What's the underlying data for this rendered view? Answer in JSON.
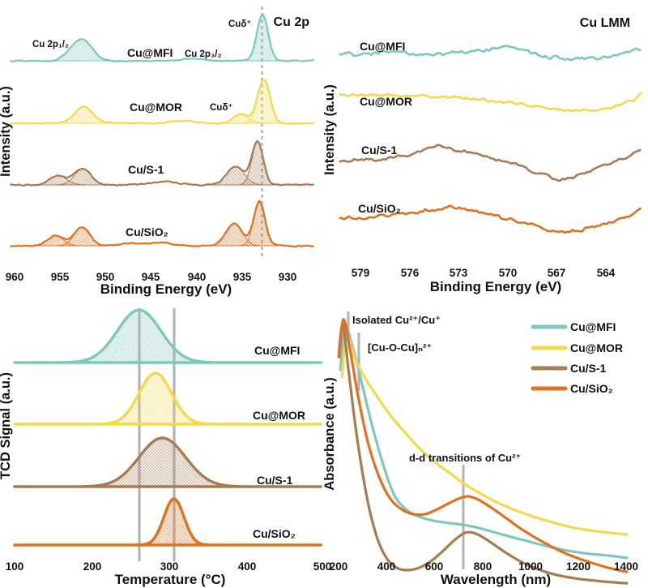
{
  "colors": {
    "series": [
      "#7cc8bc",
      "#f6d84b",
      "#a87b52",
      "#e0711f"
    ],
    "reference": "#b3b3b3"
  },
  "panels": {
    "cu2p": {
      "title": "Cu 2p",
      "ylabel": "Intensity (a.u.)",
      "xlabel": "Binding Energy (eV)",
      "label_p12": "Cu 2p₁/₂",
      "label_p32": "Cu 2p₃/₂",
      "label_species": "Cuδ⁺",
      "curves": [
        "Cu@MFI",
        "Cu@MOR",
        "Cu/S-1",
        "Cu/SiO₂"
      ]
    },
    "culmm": {
      "title": "Cu LMM",
      "ylabel": "Intensity (a.u.)",
      "xlabel": "Binding Energy (eV)",
      "curves": [
        "Cu@MFI",
        "Cu@MOR",
        "Cu/S-1",
        "Cu/SiO₂"
      ]
    },
    "tpd": {
      "ylabel": "TCD Signal (a.u.)",
      "xlabel": "Temperature (°C)",
      "curves": [
        "Cu@MFI",
        "Cu@MOR",
        "Cu/S-1",
        "Cu/SiO₂"
      ]
    },
    "uvvis": {
      "ylabel": "Absorbance (a.u.)",
      "xlabel": "Wavelength (nm)",
      "legend": [
        "Cu@MFI",
        "Cu@MOR",
        "Cu/S-1",
        "Cu/SiO₂"
      ],
      "ann_isolated": "Isolated Cu²⁺/Cu⁺",
      "ann_cuocu": "[Cu-O-Cu]ₙ²⁺",
      "ann_dd": "d-d transitions of Cu²⁺"
    }
  },
  "chart_data": [
    {
      "id": "cu2p",
      "type": "area",
      "title": "Cu 2p",
      "xlabel": "Binding Energy (eV)",
      "x_unit": "eV",
      "x_range": [
        960,
        927
      ],
      "x_ticks": [
        "960",
        "955",
        "950",
        "945",
        "940",
        "935",
        "930"
      ],
      "reference_line_eV": 932.8,
      "series": [
        {
          "name": "Cu@MFI",
          "noise": 0.02,
          "components": [
            {
              "center": 952.7,
              "amp": 0.45,
              "sigma": 1.15
            },
            {
              "center": 932.75,
              "amp": 0.94,
              "sigma": 0.62
            }
          ],
          "extras": [
            {
              "center": 940.5,
              "amp": 0.04,
              "sigma": 1.2
            }
          ]
        },
        {
          "name": "Cu@MOR",
          "noise": 0.02,
          "components": [
            {
              "center": 952.4,
              "amp": 0.34,
              "sigma": 1.0
            },
            {
              "center": 935.1,
              "amp": 0.18,
              "sigma": 0.85
            },
            {
              "center": 932.6,
              "amp": 0.9,
              "sigma": 0.68
            }
          ],
          "extras": [
            {
              "center": 941.5,
              "amp": 0.05,
              "sigma": 1.3
            }
          ]
        },
        {
          "name": "Cu/S-1",
          "noise": 0.025,
          "components": [
            {
              "center": 955.2,
              "amp": 0.19,
              "sigma": 0.95
            },
            {
              "center": 952.5,
              "amp": 0.33,
              "sigma": 0.9
            },
            {
              "center": 935.7,
              "amp": 0.38,
              "sigma": 0.95
            },
            {
              "center": 933.3,
              "amp": 0.88,
              "sigma": 0.62
            }
          ],
          "extras": [
            {
              "center": 943.5,
              "amp": 0.07,
              "sigma": 1.5
            }
          ]
        },
        {
          "name": "Cu/SiO₂",
          "noise": 0.025,
          "components": [
            {
              "center": 955.5,
              "amp": 0.21,
              "sigma": 0.85
            },
            {
              "center": 952.6,
              "amp": 0.38,
              "sigma": 0.85
            },
            {
              "center": 935.9,
              "amp": 0.45,
              "sigma": 0.9
            },
            {
              "center": 933.1,
              "amp": 0.92,
              "sigma": 0.62
            }
          ],
          "extras": [
            {
              "center": 944.0,
              "amp": 0.06,
              "sigma": 1.5
            },
            {
              "center": 947.5,
              "amp": 0.04,
              "sigma": 1.0
            }
          ]
        }
      ]
    },
    {
      "id": "culmm",
      "type": "line",
      "title": "Cu LMM",
      "xlabel": "Binding Energy (eV)",
      "x_unit": "eV",
      "x_range": [
        580.3,
        561.8
      ],
      "x_ticks": [
        "579",
        "576",
        "573",
        "570",
        "567",
        "564"
      ],
      "series": [
        {
          "name": "Cu@MFI",
          "noise": 0.06,
          "points": [
            [
              580.3,
              0
            ],
            [
              577.6,
              0.02
            ],
            [
              574.7,
              -0.02
            ],
            [
              571.3,
              0.06
            ],
            [
              570.1,
              0.14
            ],
            [
              569.0,
              0.04
            ],
            [
              567.5,
              -0.06
            ],
            [
              565.9,
              -0.12
            ],
            [
              564.4,
              -0.1
            ],
            [
              562.9,
              0.0
            ],
            [
              561.8,
              0.08
            ]
          ]
        },
        {
          "name": "Cu@MOR",
          "noise": 0.045,
          "points": [
            [
              580.3,
              0.02
            ],
            [
              576.5,
              0.0
            ],
            [
              573.0,
              -0.03
            ],
            [
              570.5,
              -0.12
            ],
            [
              568.3,
              -0.22
            ],
            [
              566.5,
              -0.3
            ],
            [
              565.0,
              -0.3
            ],
            [
              563.5,
              -0.22
            ],
            [
              562.2,
              -0.08
            ],
            [
              561.8,
              0.12
            ]
          ]
        },
        {
          "name": "Cu/S-1",
          "noise": 0.05,
          "points": [
            [
              580.3,
              -0.04
            ],
            [
              578.0,
              -0.01
            ],
            [
              575.8,
              0.1
            ],
            [
              574.2,
              0.28
            ],
            [
              572.8,
              0.14
            ],
            [
              571.2,
              0.02
            ],
            [
              569.5,
              -0.12
            ],
            [
              568.0,
              -0.3
            ],
            [
              566.8,
              -0.45
            ],
            [
              565.6,
              -0.32
            ],
            [
              564.2,
              -0.15
            ],
            [
              562.9,
              0.02
            ],
            [
              561.8,
              0.18
            ]
          ]
        },
        {
          "name": "Cu/SiO₂",
          "noise": 0.05,
          "points": [
            [
              580.3,
              -0.02
            ],
            [
              578.0,
              0.02
            ],
            [
              575.6,
              0.1
            ],
            [
              573.5,
              0.22
            ],
            [
              572.0,
              0.12
            ],
            [
              570.3,
              0.0
            ],
            [
              568.5,
              -0.15
            ],
            [
              567.0,
              -0.3
            ],
            [
              565.5,
              -0.25
            ],
            [
              563.9,
              -0.12
            ],
            [
              562.4,
              0.05
            ],
            [
              561.8,
              0.25
            ]
          ]
        }
      ]
    },
    {
      "id": "tpd",
      "type": "area",
      "xlabel": "Temperature (°C)",
      "x_unit": "°C",
      "x_range": [
        100,
        500
      ],
      "x_ticks": [
        "100",
        "200",
        "300",
        "400",
        "500"
      ],
      "reference_lines_C": [
        261,
        306
      ],
      "series": [
        {
          "name": "Cu@MFI",
          "peak": {
            "center": 261,
            "sigma": 28,
            "amp": 1.08
          }
        },
        {
          "name": "Cu@MOR",
          "peak": {
            "center": 282,
            "sigma": 21,
            "amp": 1.05
          }
        },
        {
          "name": "Cu/S-1",
          "peak": {
            "center": 291,
            "sigma": 30,
            "amp": 1.0
          }
        },
        {
          "name": "Cu/SiO₂",
          "peak": {
            "center": 306,
            "sigma": 13,
            "amp": 0.95
          }
        }
      ]
    },
    {
      "id": "uvvis",
      "type": "line",
      "xlabel": "Wavelength (nm)",
      "x_unit": "nm",
      "x_range": [
        200,
        1460
      ],
      "x_ticks": [
        "200",
        "400",
        "600",
        "800",
        "1000",
        "1200",
        "1400"
      ],
      "annotations": {
        "isolated_nm": 240,
        "cuocu_nm": 284,
        "dd_nm": 720
      },
      "series": [
        {
          "name": "Cu@MFI",
          "points": [
            [
              207,
              0.88
            ],
            [
              227,
              1.06
            ],
            [
              254,
              0.99
            ],
            [
              291,
              0.85
            ],
            [
              335,
              0.67
            ],
            [
              383,
              0.5
            ],
            [
              430,
              0.37
            ],
            [
              477,
              0.31
            ],
            [
              528,
              0.28
            ],
            [
              596,
              0.26
            ],
            [
              663,
              0.25
            ],
            [
              721,
              0.243
            ],
            [
              798,
              0.227
            ],
            [
              883,
              0.203
            ],
            [
              984,
              0.177
            ],
            [
              1103,
              0.147
            ],
            [
              1221,
              0.127
            ],
            [
              1322,
              0.117
            ],
            [
              1403,
              0.107
            ]
          ]
        },
        {
          "name": "Cu@MOR",
          "points": [
            [
              214,
              0.85
            ],
            [
              234,
              1.013
            ],
            [
              268,
              0.927
            ],
            [
              308,
              0.85
            ],
            [
              359,
              0.773
            ],
            [
              416,
              0.693
            ],
            [
              477,
              0.623
            ],
            [
              545,
              0.55
            ],
            [
              612,
              0.493
            ],
            [
              673,
              0.45
            ],
            [
              721,
              0.413
            ],
            [
              782,
              0.377
            ],
            [
              866,
              0.333
            ],
            [
              967,
              0.292
            ],
            [
              1069,
              0.26
            ],
            [
              1170,
              0.233
            ],
            [
              1272,
              0.217
            ],
            [
              1403,
              0.203
            ]
          ]
        },
        {
          "name": "Cu/S-1",
          "points": [
            [
              200,
              0.933
            ],
            [
              217,
              1.067
            ],
            [
              241,
              0.883
            ],
            [
              268,
              0.667
            ],
            [
              298,
              0.467
            ],
            [
              332,
              0.293
            ],
            [
              369,
              0.167
            ],
            [
              410,
              0.093
            ],
            [
              450,
              0.063
            ],
            [
              494,
              0.057
            ],
            [
              538,
              0.067
            ],
            [
              585,
              0.093
            ],
            [
              633,
              0.133
            ],
            [
              680,
              0.177
            ],
            [
              721,
              0.207
            ],
            [
              748,
              0.213
            ],
            [
              782,
              0.203
            ],
            [
              832,
              0.173
            ],
            [
              900,
              0.127
            ],
            [
              984,
              0.08
            ],
            [
              1086,
              0.043
            ],
            [
              1187,
              0.023
            ],
            [
              1305,
              0.01
            ],
            [
              1403,
              0.003
            ]
          ]
        },
        {
          "name": "Cu/SiO₂",
          "points": [
            [
              203,
              0.933
            ],
            [
              220,
              1.087
            ],
            [
              247,
              0.967
            ],
            [
              281,
              0.773
            ],
            [
              322,
              0.583
            ],
            [
              369,
              0.44
            ],
            [
              416,
              0.35
            ],
            [
              463,
              0.307
            ],
            [
              511,
              0.287
            ],
            [
              562,
              0.287
            ],
            [
              612,
              0.307
            ],
            [
              663,
              0.333
            ],
            [
              707,
              0.353
            ],
            [
              741,
              0.36
            ],
            [
              782,
              0.347
            ],
            [
              832,
              0.317
            ],
            [
              890,
              0.277
            ],
            [
              967,
              0.223
            ],
            [
              1052,
              0.173
            ],
            [
              1153,
              0.123
            ],
            [
              1255,
              0.087
            ],
            [
              1339,
              0.063
            ],
            [
              1403,
              0.05
            ]
          ]
        }
      ]
    }
  ]
}
